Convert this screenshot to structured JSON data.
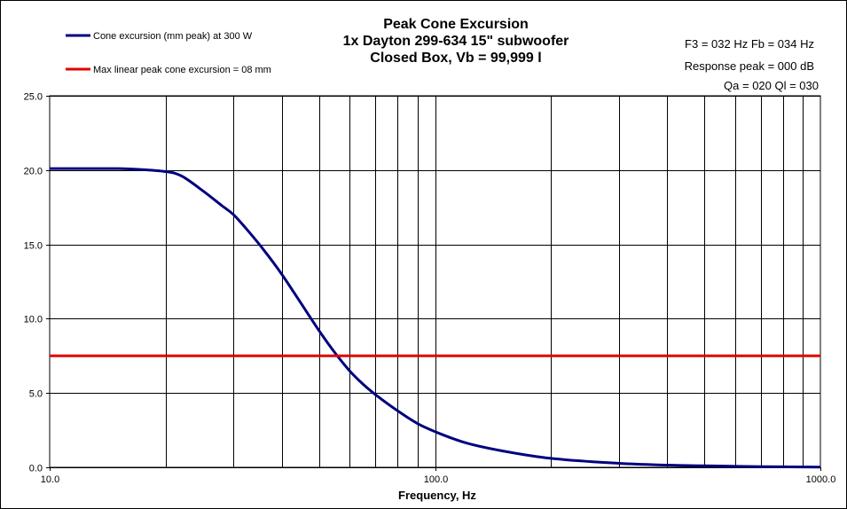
{
  "chart_data": {
    "type": "line",
    "title_lines": [
      "Peak Cone Excursion",
      "1x Dayton 299-634 15\" subwoofer",
      "Closed Box, Vb = 99,999 l"
    ],
    "xlabel": "Frequency, Hz",
    "ylabel": "",
    "x_scale": "log",
    "xlim": [
      10,
      1000
    ],
    "ylim": [
      0,
      25
    ],
    "x_tick_labels": [
      "10.0",
      "100.0",
      "1000.0"
    ],
    "y_tick_labels": [
      "0.0",
      "5.0",
      "10.0",
      "15.0",
      "20.0",
      "25.0"
    ],
    "grid": true,
    "legend_position": "top-left",
    "series": [
      {
        "name": "Cone excursion (mm peak) at 300  W",
        "color": "#00007f",
        "x": [
          10,
          12,
          15,
          17,
          20,
          22,
          25,
          28,
          30,
          33,
          36,
          40,
          45,
          50,
          55,
          60,
          65,
          70,
          80,
          90,
          100,
          120,
          150,
          200,
          300,
          400,
          500,
          700,
          1000
        ],
        "y": [
          20.1,
          20.1,
          20.1,
          20.05,
          19.9,
          19.6,
          18.6,
          17.6,
          17.0,
          15.8,
          14.6,
          13.0,
          11.0,
          9.2,
          7.7,
          6.5,
          5.6,
          4.9,
          3.8,
          2.95,
          2.4,
          1.65,
          1.1,
          0.6,
          0.27,
          0.15,
          0.1,
          0.05,
          0.02
        ]
      },
      {
        "name": "Max linear peak cone excursion = 08 mm",
        "color": "#e00000",
        "x": [
          10,
          1000
        ],
        "y": [
          7.5,
          7.5
        ]
      }
    ],
    "info_lines": [
      "F3 = 032 Hz  Fb = 034 Hz",
      "Response  peak = 000 dB",
      "Qa = 020  Ql = 030"
    ]
  }
}
